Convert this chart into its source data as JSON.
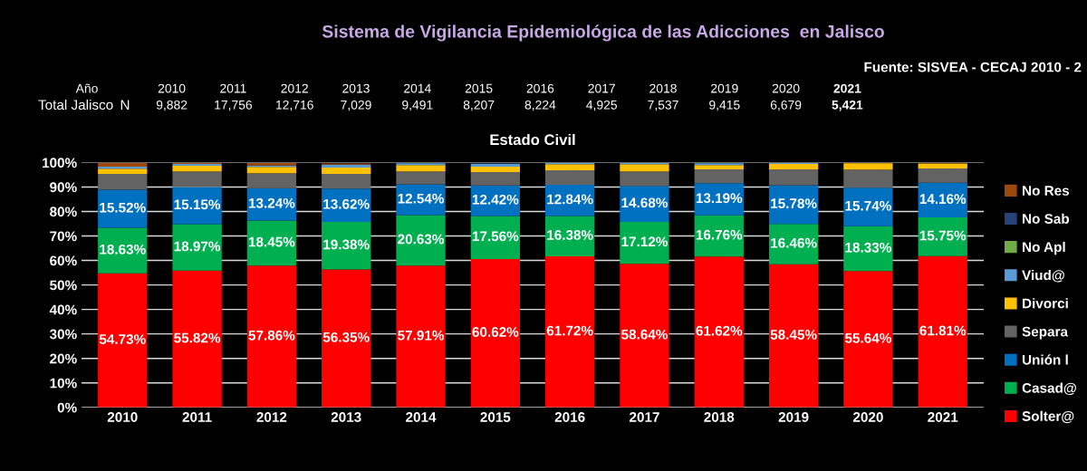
{
  "chart_data": {
    "type": "bar",
    "stacked": true,
    "title": "Estado Civil",
    "categories": [
      "2010",
      "2011",
      "2012",
      "2013",
      "2014",
      "2015",
      "2016",
      "2017",
      "2018",
      "2019",
      "2020",
      "2021"
    ],
    "ylim": [
      0,
      100
    ],
    "yticks": [
      {
        "value": 0,
        "label": "0%"
      },
      {
        "value": 10,
        "label": "10%"
      },
      {
        "value": 20,
        "label": "20%"
      },
      {
        "value": 30,
        "label": "30%"
      },
      {
        "value": 40,
        "label": "40%"
      },
      {
        "value": 50,
        "label": "50%"
      },
      {
        "value": 60,
        "label": "60%"
      },
      {
        "value": 70,
        "label": "70%"
      },
      {
        "value": 80,
        "label": "80%"
      },
      {
        "value": 90,
        "label": "90%"
      },
      {
        "value": 100,
        "label": "100%"
      }
    ],
    "grid": "y",
    "legend": "right",
    "series": [
      {
        "name": "Solter@",
        "color": "#ff0000",
        "values": [
          54.73,
          55.82,
          57.86,
          56.35,
          57.91,
          60.62,
          61.72,
          58.64,
          61.62,
          58.45,
          55.64,
          61.81
        ],
        "value_labels": [
          "54.73%",
          "55.82%",
          "57.86%",
          "56.35%",
          "57.91%",
          "60.62%",
          "61.72%",
          "58.64%",
          "61.62%",
          "58.45%",
          "55.64%",
          "61.81%"
        ]
      },
      {
        "name": "Casad@",
        "color": "#00b050",
        "values": [
          18.63,
          18.97,
          18.45,
          19.38,
          20.63,
          17.56,
          16.38,
          17.12,
          16.76,
          16.46,
          18.33,
          15.75
        ],
        "value_labels": [
          "18.63%",
          "18.97%",
          "18.45%",
          "19.38%",
          "20.63%",
          "17.56%",
          "16.38%",
          "17.12%",
          "16.76%",
          "16.46%",
          "18.33%",
          "15.75%"
        ]
      },
      {
        "name": "Unión l",
        "color": "#0070c0",
        "values": [
          15.52,
          15.15,
          13.24,
          13.62,
          12.54,
          12.42,
          12.84,
          14.68,
          13.19,
          15.78,
          15.74,
          14.16
        ],
        "value_labels": [
          "15.52%",
          "15.15%",
          "13.24%",
          "13.62%",
          "12.54%",
          "12.42%",
          "12.84%",
          "14.68%",
          "13.19%",
          "15.78%",
          "15.74%",
          "14.16%"
        ]
      },
      {
        "name": "Separa",
        "color": "#636363",
        "values": [
          6.5,
          6.4,
          6.1,
          6.0,
          5.3,
          5.5,
          5.9,
          5.9,
          5.6,
          6.5,
          7.4,
          5.8
        ]
      },
      {
        "name": "Divorci",
        "color": "#ffc000",
        "values": [
          2.1,
          2.3,
          2.6,
          2.6,
          2.6,
          2.2,
          2.5,
          3.0,
          1.8,
          2.2,
          2.6,
          2.1
        ]
      },
      {
        "name": "Viud@",
        "color": "#5b9bd5",
        "values": [
          0.8,
          0.8,
          0.5,
          1.2,
          0.7,
          1.2,
          0.5,
          0.4,
          0.7,
          0.4,
          null,
          null
        ]
      },
      {
        "name": "No Apl",
        "color": "#70ad47",
        "values": [
          null,
          null,
          null,
          null,
          null,
          null,
          null,
          null,
          null,
          null,
          null,
          null
        ]
      },
      {
        "name": "No Sab",
        "color": "#264478",
        "values": [
          null,
          null,
          null,
          null,
          null,
          null,
          null,
          null,
          null,
          null,
          null,
          null
        ]
      },
      {
        "name": "No Res",
        "color": "#9e480e",
        "values": [
          1.5,
          0.4,
          1.0,
          0.4,
          null,
          null,
          null,
          null,
          null,
          null,
          null,
          null
        ]
      }
    ],
    "annotations": [
      "Sistema de Vigilancia Epidemiológica de las Adicciones  en Jalisco",
      "Fuente: SISVEA - CECAJ 2010 - 2",
      "Año",
      "Total Jalisco",
      "N",
      "2010",
      "2011",
      "2012",
      "2013",
      "2014",
      "2015",
      "2016",
      "2017",
      "2018",
      "2019",
      "2020",
      "2021",
      "9,882",
      "17,756",
      "12,716",
      "7,029",
      "9,491",
      "8,207",
      "8,224",
      "4,925",
      "7,537",
      "9,415",
      "6,679",
      "5,421"
    ]
  }
}
